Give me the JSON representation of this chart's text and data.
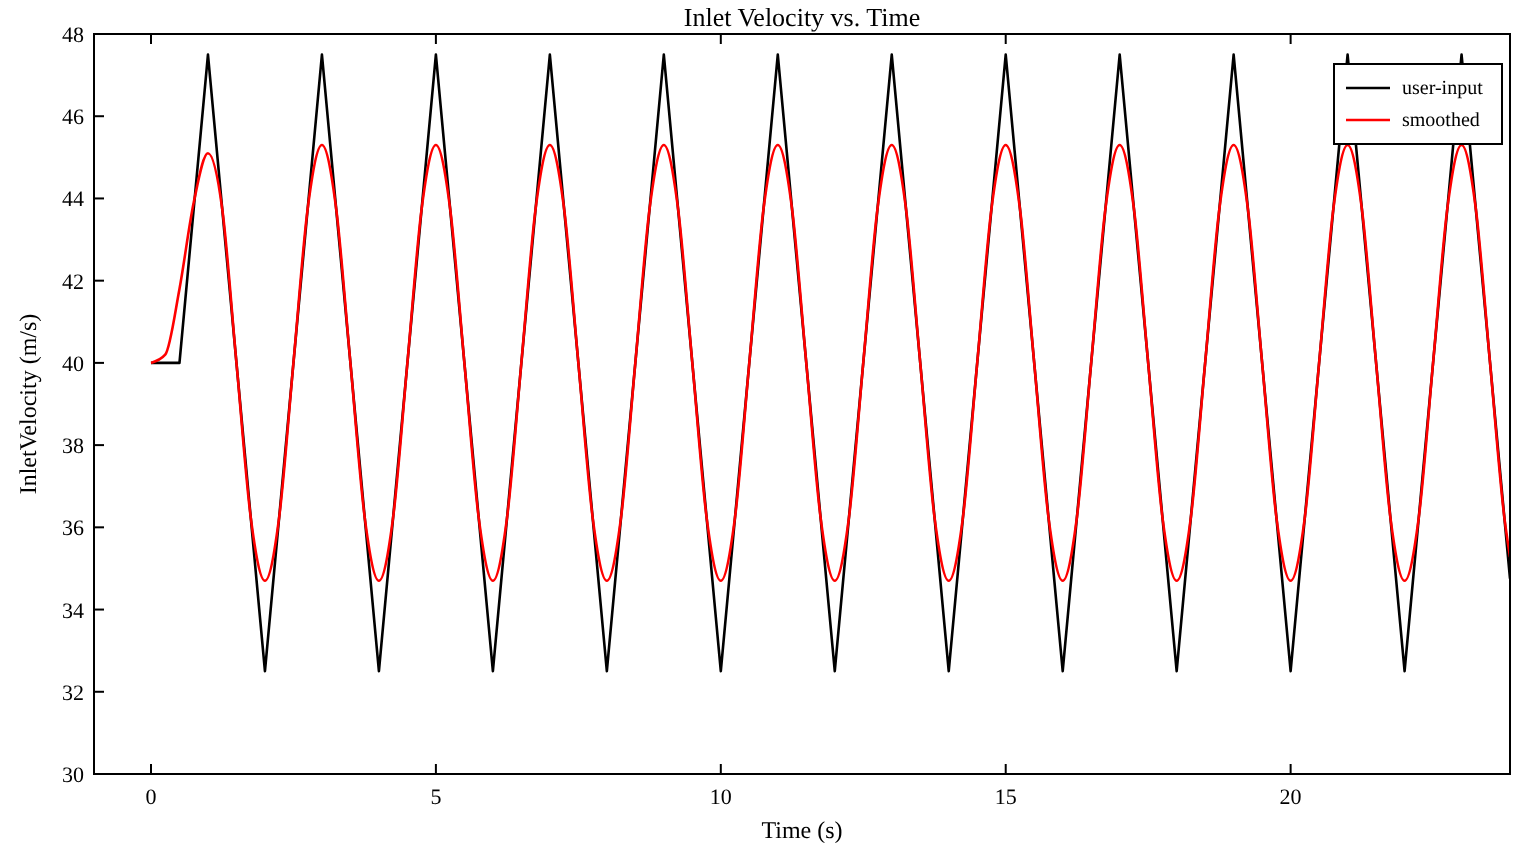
{
  "chart_data": {
    "type": "line",
    "title": "Inlet Velocity vs. Time",
    "xlabel": "Time (s)",
    "ylabel": "InletVelocity (m/s)",
    "xlim": [
      -1,
      23.85
    ],
    "xticks": [
      0,
      5,
      10,
      15,
      20
    ],
    "ylim": [
      30,
      48
    ],
    "yticks": [
      30,
      32,
      34,
      36,
      38,
      40,
      42,
      44,
      46,
      48
    ],
    "grid": false,
    "legend": "top right",
    "marker": "none",
    "line_style": "solid",
    "series": [
      {
        "name": "user-input",
        "color": "#000000",
        "x": [
          0,
          0.5,
          1,
          2,
          3,
          4,
          5,
          6,
          7,
          8,
          9,
          10,
          11,
          12,
          13,
          14,
          15,
          16,
          17,
          18,
          19,
          20,
          21,
          22,
          23,
          23.85
        ],
        "values": [
          40,
          40,
          47.5,
          32.5,
          47.5,
          32.5,
          47.5,
          32.5,
          47.5,
          32.5,
          47.5,
          32.5,
          47.5,
          32.5,
          47.5,
          32.5,
          47.5,
          32.5,
          47.5,
          32.5,
          47.5,
          32.5,
          47.5,
          32.5,
          47.5,
          34.75
        ]
      },
      {
        "name": "smoothed",
        "color": "#ff0000",
        "x": [
          0,
          0.25,
          0.5,
          0.75,
          1,
          1.25,
          1.5,
          1.75,
          2,
          2.25,
          2.5,
          2.75,
          3,
          3.25,
          3.5,
          3.75,
          4,
          4.25,
          4.5,
          4.75,
          5,
          5.25,
          5.5,
          5.75,
          6,
          6.25,
          6.5,
          6.75,
          7,
          7.25,
          7.5,
          7.75,
          8,
          8.25,
          8.5,
          8.75,
          9,
          9.25,
          9.5,
          9.75,
          10,
          10.25,
          10.5,
          10.75,
          11,
          11.25,
          11.5,
          11.75,
          12,
          12.25,
          12.5,
          12.75,
          13,
          13.25,
          13.5,
          13.75,
          14,
          14.25,
          14.5,
          14.75,
          15,
          15.25,
          15.5,
          15.75,
          16,
          16.25,
          16.5,
          16.75,
          17,
          17.25,
          17.5,
          17.75,
          18,
          18.25,
          18.5,
          18.75,
          19,
          19.25,
          19.5,
          19.75,
          20,
          20.25,
          20.5,
          20.75,
          21,
          21.25,
          21.5,
          21.75,
          22,
          22.25,
          22.5,
          22.75,
          23,
          23.25,
          23.5,
          23.75,
          23.85
        ],
        "values": [
          40,
          40.2,
          41.8,
          43.9,
          45.1,
          43.75,
          40,
          36.25,
          34.7,
          36.25,
          40,
          43.75,
          45.3,
          43.75,
          40,
          36.25,
          34.7,
          36.25,
          40,
          43.75,
          45.3,
          43.75,
          40,
          36.25,
          34.7,
          36.25,
          40,
          43.75,
          45.3,
          43.75,
          40,
          36.25,
          34.7,
          36.25,
          40,
          43.75,
          45.3,
          43.75,
          40,
          36.25,
          34.7,
          36.25,
          40,
          43.75,
          45.3,
          43.75,
          40,
          36.25,
          34.7,
          36.25,
          40,
          43.75,
          45.3,
          43.75,
          40,
          36.25,
          34.7,
          36.25,
          40,
          43.75,
          45.3,
          43.75,
          40,
          36.25,
          34.7,
          36.25,
          40,
          43.75,
          45.3,
          43.75,
          40,
          36.25,
          34.7,
          36.25,
          40,
          43.75,
          45.3,
          43.75,
          40,
          36.25,
          34.7,
          36.25,
          40,
          43.75,
          45.3,
          43.75,
          40,
          36.25,
          34.7,
          36.25,
          40,
          43.75,
          45.3,
          43.75,
          40,
          36.25,
          35.28
        ]
      }
    ]
  }
}
